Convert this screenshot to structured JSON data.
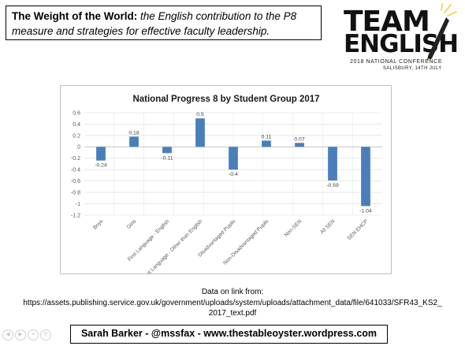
{
  "header": {
    "title_bold": "The Weight of the World:",
    "title_italic": " the English contribution to the P8 measure and strategies for effective faculty leadership."
  },
  "logo": {
    "line1": "TEAM",
    "line2": "ENGLISH",
    "conference": "2018 NATIONAL CONFERENCE",
    "place_date": "SALISBURY, 14TH JULY"
  },
  "colors": {
    "bar": "#4a7ebb",
    "grid": "#d9d9d9",
    "axis": "#bfbfbf"
  },
  "chart_data": {
    "type": "bar",
    "title": "National Progress 8 by Student Group 2017",
    "categories": [
      "Boys",
      "Girls",
      "First Language - English",
      "First Language - Other than English",
      "Disadvantaged Pupils",
      "Non-Disadvantaged Pupils",
      "Non-SEN",
      "All SEN",
      "SEN EHCP"
    ],
    "values": [
      -0.24,
      0.18,
      -0.11,
      0.5,
      -0.4,
      0.11,
      0.07,
      -0.59,
      -1.04
    ],
    "data_labels": [
      "-0.24",
      "0.18",
      "-0.11",
      "0.5",
      "-0.4",
      "0.11",
      "0.07",
      "-0.59",
      "-1.04"
    ],
    "ylim": [
      -1.2,
      0.6
    ],
    "yticks": [
      0.6,
      0.4,
      0.2,
      0,
      -0.2,
      -0.4,
      -0.6,
      -0.8,
      -1,
      -1.2
    ],
    "grid": true
  },
  "source": {
    "line1": "Data on link from:",
    "line2": "https://assets.publishing.service.gov.uk/government/uploads/system/uploads/attachment_data/file/641033/SFR43_KS2_",
    "line3": "2017_text.pdf"
  },
  "footer": {
    "text": "Sarah Barker - @mssfax  - www.thestableoyster.wordpress.com"
  },
  "nav_icons": [
    "prev-slide-icon",
    "next-slide-icon",
    "menu-icon",
    "zoom-icon"
  ]
}
